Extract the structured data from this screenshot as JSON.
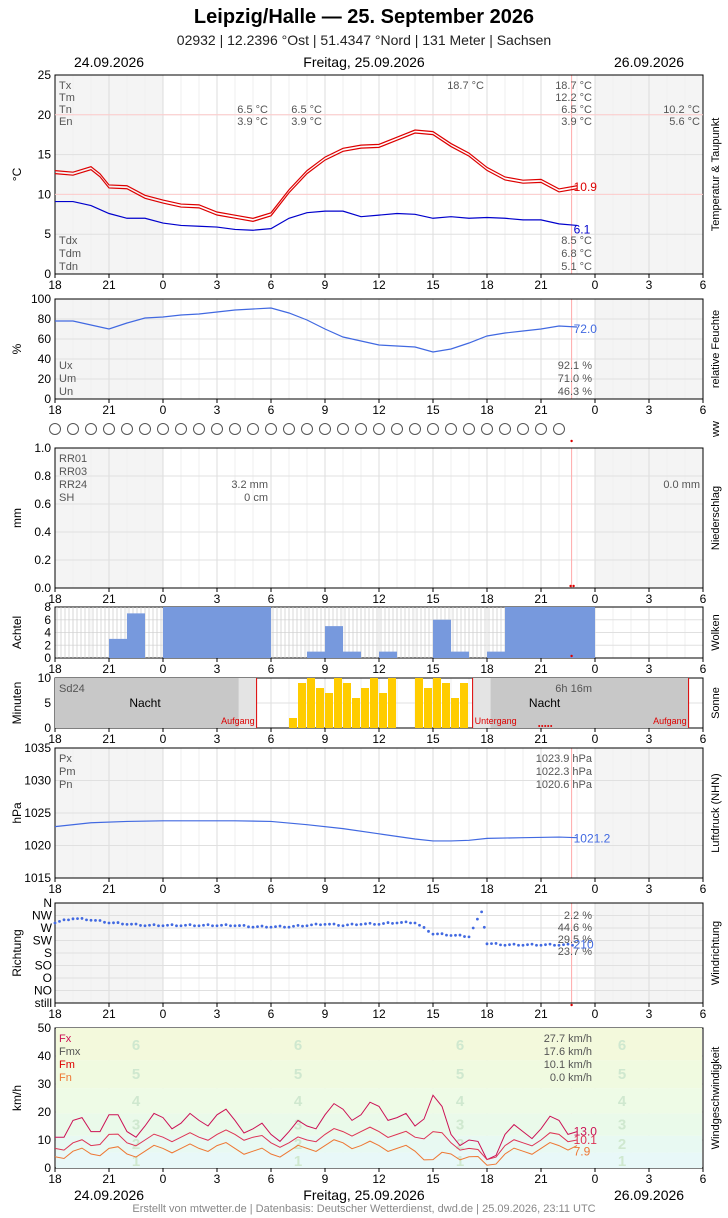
{
  "header": {
    "title": "Leipzig/Halle  —  25. September 2026",
    "subtitle": "02932  |  12.2396 °Ost  |  51.4347 °Nord  |  131 Meter  |  Sachsen",
    "date_prev": "24.09.2026",
    "date_main": "Freitag, 25.09.2026",
    "date_next": "26.09.2026"
  },
  "footer": "Erstellt von mtwetter.de | Datenbasis: Deutscher Wetterdienst, dwd.de | 25.09.2026, 23:11 UTC",
  "x_ticks": [
    "18",
    "21",
    "0",
    "3",
    "6",
    "9",
    "12",
    "15",
    "18",
    "21",
    "0",
    "3",
    "6"
  ],
  "colors": {
    "red": "#dd0000",
    "blue": "#0000cc",
    "lblue": "#4169e1",
    "grey": "#666666",
    "sun": "#ffcc00",
    "night": "#c8c8c8",
    "cloud": "#7799dd",
    "orange": "#ee7733",
    "crimson": "#cc1155"
  },
  "chart_data": [
    {
      "id": "temperature",
      "type": "line",
      "ylabel": "°C",
      "side_label": "Temperatur & Taupunkt",
      "ylim": [
        0,
        25
      ],
      "y_ticks": [
        "0",
        "5",
        "10",
        "15",
        "20",
        "25"
      ],
      "stats_left": [
        {
          "key": "Tx",
          "v1": "",
          "v2": "",
          "v3": "18.7 °C",
          "v4": "18.7 °C",
          "v5": ""
        },
        {
          "key": "Tm",
          "v1": "",
          "v2": "",
          "v3": "",
          "v4": "12.2 °C",
          "v5": ""
        },
        {
          "key": "Tn",
          "v1": "6.5 °C",
          "v2": "6.5 °C",
          "v3": "",
          "v4": "6.5 °C",
          "v5": "10.2 °C"
        },
        {
          "key": "En",
          "v1": "3.9 °C",
          "v2": "3.9 °C",
          "v3": "",
          "v4": "3.9 °C",
          "v5": "5.6 °C"
        }
      ],
      "stats_dew": [
        {
          "key": "Tdx",
          "val": "8.5 °C"
        },
        {
          "key": "Tdm",
          "val": "6.8 °C"
        },
        {
          "key": "Tdn",
          "val": "5.1 °C"
        }
      ],
      "series": [
        {
          "name": "Temperatur",
          "end_label": "10.9",
          "x": [
            -6,
            -5,
            -4,
            -3.5,
            -3,
            -2,
            -1,
            0,
            1,
            2,
            3,
            4,
            5,
            6,
            7,
            8,
            9,
            10,
            11,
            12,
            13,
            14,
            15,
            16,
            17,
            18,
            19,
            20,
            21,
            22,
            23
          ],
          "y": [
            12.8,
            12.6,
            13.3,
            12.4,
            11.0,
            10.9,
            9.7,
            9.1,
            8.6,
            8.5,
            7.6,
            7.2,
            6.8,
            7.5,
            10.4,
            12.8,
            14.5,
            15.6,
            16.0,
            16.1,
            17.0,
            17.9,
            17.7,
            16.2,
            15.0,
            13.2,
            12.0,
            11.6,
            11.7,
            10.5,
            10.9
          ]
        },
        {
          "name": "Taupunkt",
          "end_label": "6.1",
          "x": [
            -6,
            -5,
            -4,
            -3,
            -2,
            -1,
            0,
            1,
            2,
            3,
            4,
            5,
            6,
            7,
            8,
            9,
            10,
            11,
            12,
            13,
            14,
            15,
            16,
            17,
            18,
            19,
            20,
            21,
            22,
            23
          ],
          "y": [
            9.1,
            9.1,
            8.6,
            7.6,
            7.0,
            7.0,
            6.4,
            6.1,
            6.0,
            5.9,
            5.6,
            5.5,
            5.7,
            7.0,
            7.7,
            7.9,
            7.9,
            7.2,
            7.4,
            7.6,
            7.5,
            7.0,
            7.2,
            7.0,
            7.1,
            7.0,
            6.8,
            6.8,
            6.3,
            6.1
          ]
        }
      ]
    },
    {
      "id": "humidity",
      "type": "line",
      "ylabel": "%",
      "side_label": "relative Feuchte",
      "ylim": [
        0,
        100
      ],
      "y_ticks": [
        "0",
        "20",
        "40",
        "60",
        "80",
        "100"
      ],
      "stats": [
        {
          "key": "Ux",
          "val": "92.1 %"
        },
        {
          "key": "Um",
          "val": "71.0 %"
        },
        {
          "key": "Un",
          "val": "46.3 %"
        }
      ],
      "series": [
        {
          "name": "Feuchte",
          "end_label": "72.0",
          "x": [
            -6,
            -5,
            -4,
            -3,
            -2,
            -1,
            0,
            1,
            2,
            3,
            4,
            5,
            6,
            7,
            8,
            9,
            10,
            11,
            12,
            13,
            14,
            15,
            16,
            17,
            18,
            19,
            20,
            21,
            22,
            23
          ],
          "y": [
            78,
            78,
            74,
            70,
            76,
            81,
            82,
            84,
            85,
            87,
            89,
            90,
            91,
            86,
            79,
            70,
            62,
            58,
            54,
            53,
            52,
            47,
            50,
            56,
            63,
            66,
            68,
            70,
            73,
            72
          ]
        }
      ]
    },
    {
      "id": "ww",
      "type": "scatter",
      "side_label": "ww",
      "symbols": 29
    },
    {
      "id": "precipitation",
      "type": "bar",
      "ylabel": "mm",
      "side_label": "Niederschlag",
      "ylim": [
        0,
        1.0
      ],
      "y_ticks": [
        "0.0",
        "0.2",
        "0.4",
        "0.6",
        "0.8",
        "1.0"
      ],
      "stats": [
        {
          "key": "RR01",
          "val": ""
        },
        {
          "key": "RR03",
          "val": ""
        },
        {
          "key": "RR24",
          "val": "3.2 mm"
        },
        {
          "key": "SH",
          "val": "0 cm"
        }
      ],
      "next_day": "0.0 mm",
      "values": []
    },
    {
      "id": "clouds",
      "type": "bar",
      "ylabel": "Achtel",
      "side_label": "Wolken",
      "ylim": [
        0,
        8
      ],
      "y_ticks": [
        "0",
        "2",
        "4",
        "6",
        "8"
      ],
      "x": [
        -6,
        -5,
        -4,
        -3,
        -2,
        -1,
        0,
        1,
        2,
        3,
        4,
        5,
        6,
        7,
        8,
        9,
        10,
        11,
        12,
        13,
        14,
        15,
        16,
        17,
        18,
        19,
        20,
        21,
        22,
        23
      ],
      "values": [
        0,
        0,
        0,
        3,
        7,
        0,
        8,
        8,
        8,
        8,
        8,
        8,
        0,
        0,
        1,
        5,
        1,
        0,
        1,
        0,
        0,
        6,
        1,
        0,
        1,
        8,
        8,
        8,
        8,
        8
      ]
    },
    {
      "id": "sunshine",
      "type": "bar",
      "ylabel": "Minuten",
      "side_label": "Sonne",
      "ylim": [
        0,
        10
      ],
      "y_ticks": [
        "0",
        "5",
        "10"
      ],
      "sd_label": "Sd24",
      "sd_value": "6h 16m",
      "night_label": "Nacht",
      "sunrise_label": "Aufgang",
      "sunset_label": "Untergang",
      "sunrise_h": 5.2,
      "sunset_h": 17.2,
      "x": [
        7,
        7.5,
        8,
        8.5,
        9,
        9.5,
        10,
        10.5,
        11,
        11.5,
        12,
        12.5,
        13,
        13.5,
        14,
        14.5,
        15,
        15.5,
        16,
        16.5
      ],
      "values": [
        2,
        9,
        10,
        8,
        7,
        10,
        9,
        6,
        8,
        10,
        7,
        10,
        0,
        0,
        10,
        8,
        10,
        9,
        6,
        9
      ]
    },
    {
      "id": "pressure",
      "type": "line",
      "ylabel": "hPa",
      "side_label": "Luftdruck (NHN)",
      "ylim": [
        1015,
        1035
      ],
      "y_ticks": [
        "1015",
        "1020",
        "1025",
        "1030",
        "1035"
      ],
      "stats": [
        {
          "key": "Px",
          "val": "1023.9 hPa"
        },
        {
          "key": "Pm",
          "val": "1022.3 hPa"
        },
        {
          "key": "Pn",
          "val": "1020.6 hPa"
        }
      ],
      "series": [
        {
          "name": "Luftdruck",
          "end_label": "1021.2",
          "x": [
            -6,
            -4,
            -2,
            0,
            2,
            4,
            6,
            8,
            10,
            12,
            14,
            15,
            16,
            17,
            18,
            20,
            22,
            23
          ],
          "y": [
            1022.9,
            1023.5,
            1023.7,
            1023.8,
            1023.8,
            1023.8,
            1023.7,
            1023.2,
            1022.6,
            1021.8,
            1021.0,
            1020.7,
            1020.7,
            1020.8,
            1021.1,
            1021.2,
            1021.3,
            1021.2
          ]
        }
      ]
    },
    {
      "id": "wind_direction",
      "type": "scatter",
      "ylabel": "Richtung",
      "side_label": "Windrichtung",
      "categories": [
        "N",
        "NW",
        "W",
        "SW",
        "S",
        "SO",
        "O",
        "NO",
        "still"
      ],
      "stats": [
        "2.2 %",
        "44.6 %",
        "29.5 %",
        "23.7 %"
      ],
      "end_label": "210",
      "x": [
        -6,
        -5,
        -4,
        -3,
        -2,
        -1,
        0,
        1,
        2,
        3,
        4,
        5,
        6,
        7,
        8,
        9,
        10,
        11,
        12,
        13,
        14,
        15,
        16,
        17,
        17.7,
        18,
        19,
        20,
        21,
        22,
        23
      ],
      "y": [
        290,
        305,
        300,
        290,
        285,
        280,
        280,
        280,
        280,
        280,
        280,
        275,
        275,
        275,
        280,
        285,
        280,
        285,
        285,
        290,
        290,
        250,
        245,
        240,
        330,
        215,
        210,
        210,
        210,
        210,
        210
      ]
    },
    {
      "id": "wind_speed",
      "type": "line",
      "ylabel": "km/h",
      "side_label": "Windgeschwindigkeit",
      "ylim": [
        0,
        50
      ],
      "y_ticks": [
        "0",
        "10",
        "20",
        "30",
        "40",
        "50"
      ],
      "beaufort": [
        "1",
        "2",
        "3",
        "4",
        "5",
        "6"
      ],
      "stats": [
        {
          "key": "Fx",
          "val": "27.7 km/h"
        },
        {
          "key": "Fmx",
          "val": "17.6 km/h"
        },
        {
          "key": "Fm",
          "val": "10.1 km/h"
        },
        {
          "key": "Fn",
          "val": "0.0 km/h"
        }
      ],
      "series": [
        {
          "name": "Fx",
          "end_label": "13.0",
          "x": [
            -6,
            -5,
            -4,
            -3,
            -2,
            -1,
            0,
            1,
            2,
            3,
            4,
            5,
            6,
            7,
            8,
            9,
            10,
            11,
            12,
            13,
            14,
            15,
            16,
            17,
            18,
            19,
            20,
            21,
            22,
            23
          ],
          "y": [
            11,
            17,
            13,
            19,
            13,
            15,
            18,
            16,
            17,
            19,
            17,
            14,
            12,
            13,
            15,
            19,
            21,
            19,
            22,
            18,
            15,
            26,
            12,
            10,
            3,
            12,
            13,
            14,
            17,
            13
          ]
        },
        {
          "name": "Fm",
          "end_label": "10.1",
          "x": [
            -6,
            -5,
            -4,
            -3,
            -2,
            -1,
            0,
            1,
            2,
            3,
            4,
            5,
            6,
            7,
            8,
            9,
            10,
            11,
            12,
            13,
            14,
            15,
            16,
            17,
            18,
            19,
            20,
            21,
            22,
            23
          ],
          "y": [
            7,
            9,
            8,
            12,
            9,
            10,
            11,
            11,
            11,
            12,
            12,
            11,
            9,
            9,
            10,
            12,
            13,
            13,
            13,
            12,
            11,
            13,
            9,
            7,
            3,
            8,
            9,
            10,
            12,
            10
          ]
        },
        {
          "name": "Fn",
          "end_label": "7.9",
          "x": [
            -6,
            -5,
            -4,
            -3,
            -2,
            -1,
            0,
            1,
            2,
            3,
            4,
            5,
            6,
            7,
            8,
            9,
            10,
            11,
            12,
            13,
            14,
            15,
            16,
            17,
            18,
            19,
            20,
            21,
            22,
            23
          ],
          "y": [
            4,
            6,
            5,
            7,
            5,
            6,
            7,
            7,
            7,
            8,
            7,
            6,
            5,
            6,
            7,
            8,
            9,
            8,
            8,
            7,
            6,
            3,
            5,
            4,
            1,
            5,
            6,
            7,
            8,
            8
          ]
        }
      ]
    }
  ]
}
